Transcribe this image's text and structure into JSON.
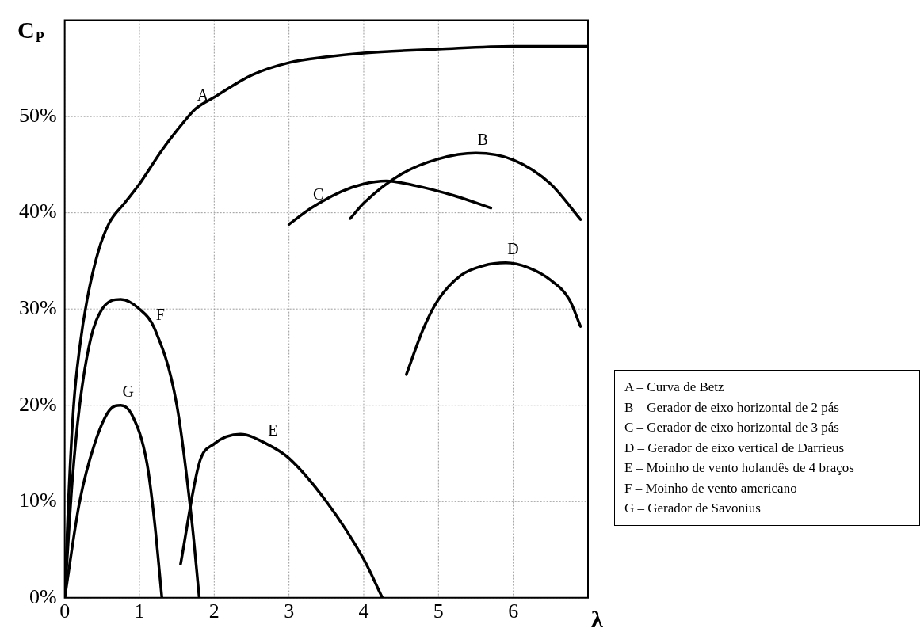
{
  "chart_data": {
    "type": "line",
    "xlabel": "λ",
    "ylabel": "C$_{P}$",
    "xlim": [
      0,
      7
    ],
    "xticks": [
      0,
      1,
      2,
      3,
      4,
      5,
      6
    ],
    "ylim": [
      0,
      60
    ],
    "yticks": [
      {
        "value": 0,
        "label": "0%"
      },
      {
        "value": 10,
        "label": "10%"
      },
      {
        "value": 20,
        "label": "20%"
      },
      {
        "value": 30,
        "label": "30%"
      },
      {
        "value": 40,
        "label": "40%"
      },
      {
        "value": 50,
        "label": "50%"
      }
    ],
    "grid": true,
    "series": [
      {
        "color": "#000000",
        "x": [
          0,
          0.05,
          0.12,
          0.2,
          0.3,
          0.45,
          0.6,
          0.8,
          1,
          1.3,
          1.6,
          1.75,
          2,
          2.5,
          3,
          3.5,
          4,
          5,
          6,
          7
        ],
        "values": [
          0,
          10,
          20,
          26,
          31,
          36,
          39,
          41,
          43,
          46.5,
          49.5,
          50.8,
          52,
          54.3,
          55.6,
          56.2,
          56.6,
          57,
          57.3,
          57.3
        ]
      },
      {
        "color": "#000000",
        "x": [
          3.82,
          4,
          4.5,
          5,
          5.5,
          6,
          6.5,
          6.9
        ],
        "values": [
          39.4,
          41,
          44,
          45.6,
          46.2,
          45.5,
          43,
          39.3
        ]
      },
      {
        "color": "#000000",
        "x": [
          3,
          3.3,
          3.7,
          4,
          4.3,
          4.7,
          5.2,
          5.7
        ],
        "values": [
          38.8,
          40.5,
          42.2,
          43,
          43.3,
          42.8,
          41.8,
          40.5
        ]
      },
      {
        "color": "#000000",
        "x": [
          4.57,
          4.8,
          5,
          5.3,
          5.6,
          5.9,
          6.2,
          6.5,
          6.75,
          6.9
        ],
        "values": [
          23.2,
          28,
          31,
          33.5,
          34.5,
          34.8,
          34.3,
          33,
          31,
          28.2
        ]
      },
      {
        "color": "#000000",
        "x": [
          1.55,
          1.8,
          2,
          2.35,
          2.7,
          3,
          3.5,
          4,
          4.25
        ],
        "values": [
          3.5,
          14,
          16,
          17,
          16,
          14.5,
          10,
          4,
          0
        ]
      },
      {
        "color": "#000000",
        "x": [
          0,
          0.1,
          0.2,
          0.35,
          0.5,
          0.75,
          1,
          1.2,
          1.5,
          1.7,
          1.8
        ],
        "values": [
          0,
          12,
          20,
          27,
          30,
          31,
          30,
          28,
          20,
          8,
          0
        ]
      },
      {
        "color": "#000000",
        "x": [
          0,
          0.2,
          0.4,
          0.6,
          0.75,
          0.9,
          1.1,
          1.2,
          1.3
        ],
        "values": [
          0,
          10,
          16,
          19.5,
          20,
          19,
          14,
          8,
          0
        ]
      }
    ],
    "annotations": [
      {
        "text": "A",
        "x": 1.75,
        "y": 50.8
      },
      {
        "text": "B",
        "x": 5.5,
        "y": 46.2
      },
      {
        "text": "C",
        "x": 3.3,
        "y": 40.5
      },
      {
        "text": "D",
        "x": 5.9,
        "y": 34.8
      },
      {
        "text": "E",
        "x": 2.7,
        "y": 16
      },
      {
        "text": "F",
        "x": 1.2,
        "y": 28
      },
      {
        "text": "G",
        "x": 0.75,
        "y": 20
      },
      "A – Curva de Betz",
      "B – Gerador de eixo horizontal de 2 pás",
      "C – Gerador de eixo horizontal de 3 pás",
      "D – Gerador de eixo vertical de Darrieus",
      "E – Moinho de vento holandês de 4 braços",
      "F – Moinho de vento americano",
      "G – Gerador de Savonius"
    ]
  }
}
